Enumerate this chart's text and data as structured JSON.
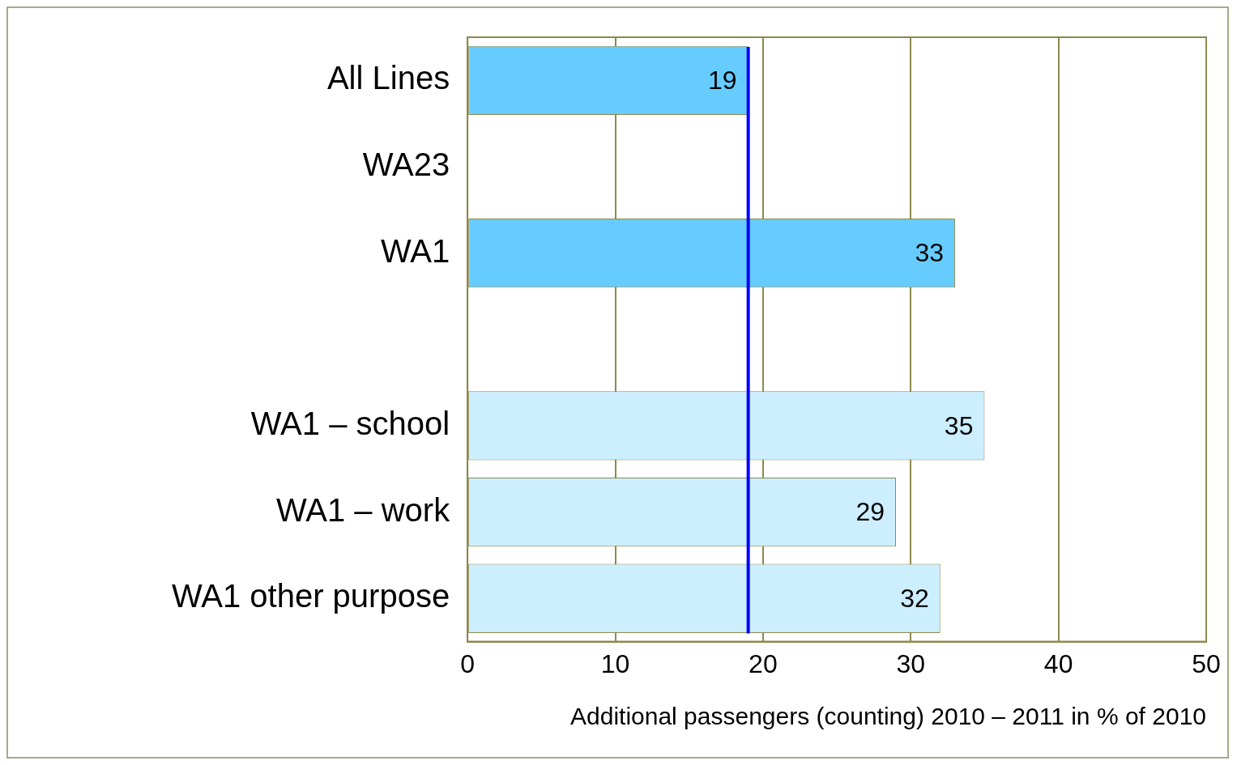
{
  "chart_data": {
    "type": "bar",
    "orientation": "horizontal",
    "categories": [
      "All Lines",
      "WA23",
      "WA1",
      null,
      "WA1 – school",
      "WA1 – work",
      "WA1 other purpose"
    ],
    "values": [
      19,
      null,
      33,
      null,
      35,
      29,
      32
    ],
    "colors": [
      "#66ccff",
      "#66ccff",
      "#66ccff",
      "#66ccff",
      "#cceeff",
      "#cceeff",
      "#cceeff"
    ],
    "xlim": [
      0,
      50
    ],
    "xticks": [
      0,
      10,
      20,
      30,
      40,
      50
    ],
    "xlabel": "Additional passengers (counting) 2010 – 2011 in % of 2010",
    "grid": "x",
    "legend": false,
    "data_labels": true,
    "ref_lines": [
      {
        "axis": "x",
        "value": 19,
        "color": "#0000ff"
      }
    ]
  }
}
